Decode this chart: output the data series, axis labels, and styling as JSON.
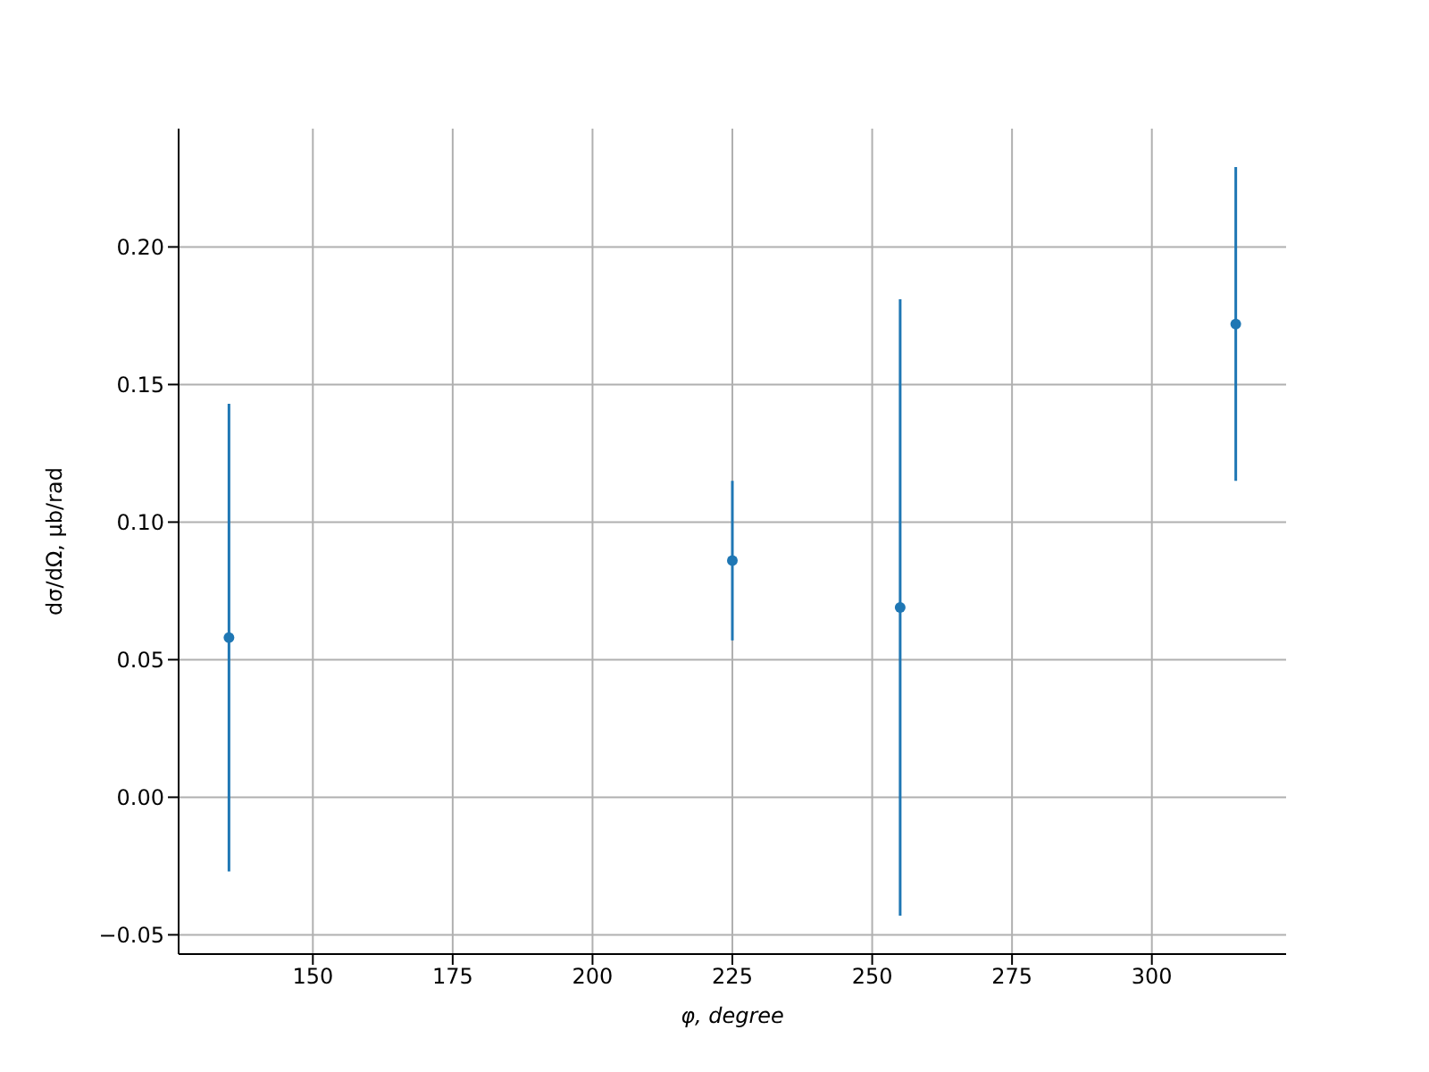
{
  "chart_data": {
    "type": "scatter",
    "xlabel": "φ, degree",
    "ylabel": "dσ/dΩ, μb/rad",
    "x": [
      135,
      225,
      255,
      315
    ],
    "values": [
      0.058,
      0.086,
      0.069,
      0.172
    ],
    "errors": [
      0.085,
      0.029,
      0.112,
      0.057
    ],
    "color": "#1f77b4",
    "marker": "circle",
    "xlim": [
      126,
      324
    ],
    "xticks": [
      150,
      175,
      200,
      225,
      250,
      275,
      300
    ],
    "ylim": [
      -0.057,
      0.243
    ],
    "yticks": [
      {
        "value": -0.05,
        "label": "−0.05"
      },
      {
        "value": 0,
        "label": "0.00"
      },
      {
        "value": 0.05,
        "label": "0.05"
      },
      {
        "value": 0.1,
        "label": "0.10"
      },
      {
        "value": 0.15,
        "label": "0.15"
      },
      {
        "value": 0.2,
        "label": "0.20"
      }
    ],
    "grid": true
  }
}
